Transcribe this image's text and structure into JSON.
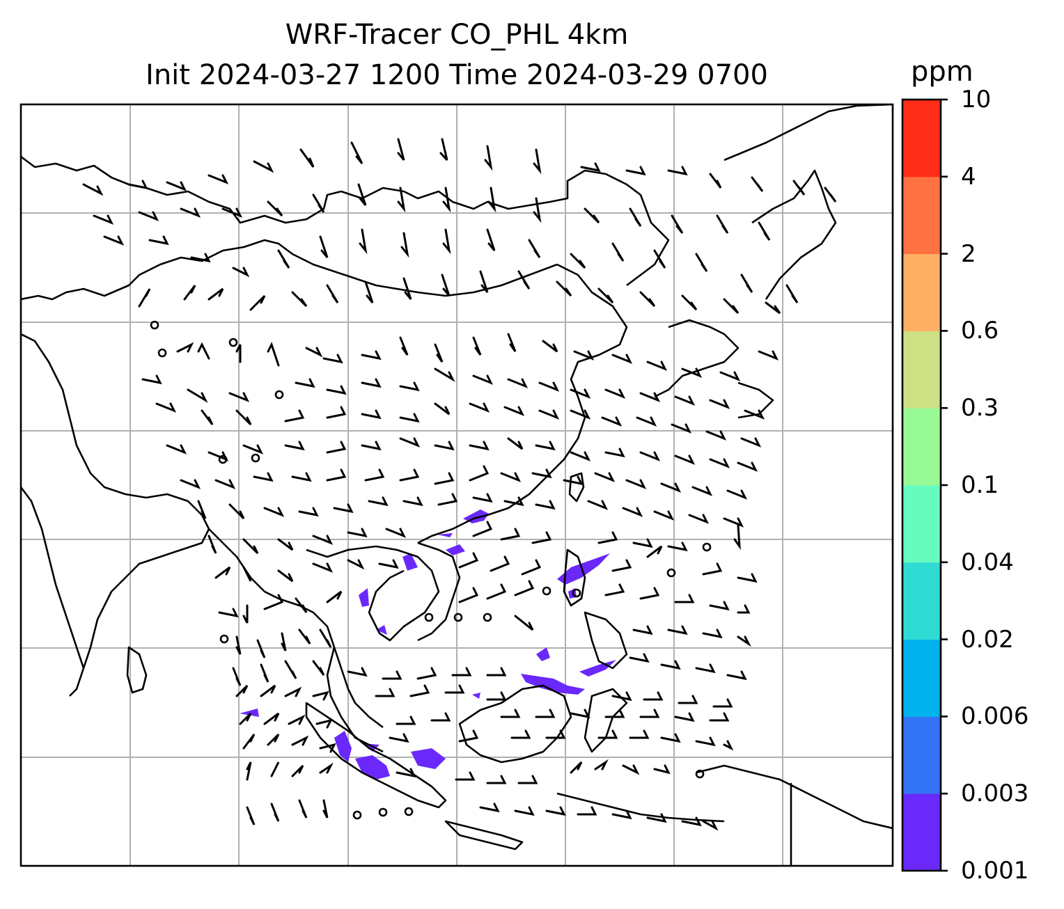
{
  "title": {
    "line1": "WRF-Tracer CO_PHL 4km",
    "line2": "Init 2024-03-27 1200 Time 2024-03-29 0700"
  },
  "colorbar": {
    "unit": "ppm",
    "levels": [
      "0.001",
      "0.003",
      "0.006",
      "0.02",
      "0.04",
      "0.1",
      "0.3",
      "0.6",
      "2",
      "4",
      "10"
    ],
    "colors": [
      "#6a28fa",
      "#3373f5",
      "#02b2ec",
      "#2fdcd3",
      "#66fbbf",
      "#98fa95",
      "#cde083",
      "#fdb063",
      "#ff7140",
      "#ff2c17"
    ]
  },
  "map": {
    "gridlines": true,
    "wind_barbs": "black",
    "tracer_color": "#6a28fa"
  }
}
